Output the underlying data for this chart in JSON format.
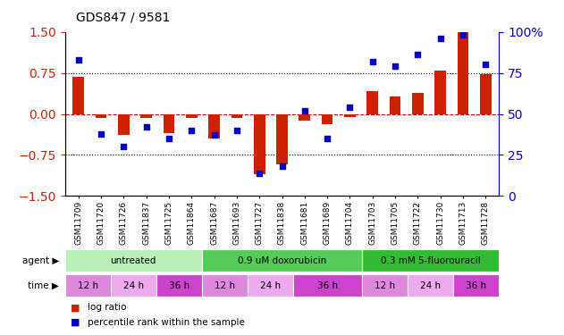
{
  "title": "GDS847 / 9581",
  "samples": [
    "GSM11709",
    "GSM11720",
    "GSM11726",
    "GSM11837",
    "GSM11725",
    "GSM11864",
    "GSM11687",
    "GSM11693",
    "GSM11727",
    "GSM11838",
    "GSM11681",
    "GSM11689",
    "GSM11704",
    "GSM11703",
    "GSM11705",
    "GSM11722",
    "GSM11730",
    "GSM11713",
    "GSM11728"
  ],
  "log_ratio": [
    0.68,
    -0.08,
    -0.38,
    -0.07,
    -0.35,
    -0.08,
    -0.45,
    -0.07,
    -1.1,
    -0.92,
    -0.12,
    -0.18,
    -0.05,
    0.42,
    0.32,
    0.38,
    0.8,
    1.5,
    0.72
  ],
  "percentile": [
    83,
    38,
    30,
    42,
    35,
    40,
    37,
    40,
    14,
    18,
    52,
    35,
    54,
    82,
    79,
    86,
    96,
    98,
    80
  ],
  "agents": [
    {
      "label": "untreated",
      "start": 0,
      "end": 6,
      "color": "#b8f0b8"
    },
    {
      "label": "0.9 uM doxorubicin",
      "start": 6,
      "end": 13,
      "color": "#55cc55"
    },
    {
      "label": "0.3 mM 5-fluorouracil",
      "start": 13,
      "end": 19,
      "color": "#33bb33"
    }
  ],
  "times": [
    {
      "label": "12 h",
      "start": 0,
      "end": 2,
      "color": "#dd88dd"
    },
    {
      "label": "24 h",
      "start": 2,
      "end": 4,
      "color": "#eeaaee"
    },
    {
      "label": "36 h",
      "start": 4,
      "end": 6,
      "color": "#cc44cc"
    },
    {
      "label": "12 h",
      "start": 6,
      "end": 8,
      "color": "#dd88dd"
    },
    {
      "label": "24 h",
      "start": 8,
      "end": 10,
      "color": "#eeaaee"
    },
    {
      "label": "36 h",
      "start": 10,
      "end": 13,
      "color": "#cc44cc"
    },
    {
      "label": "12 h",
      "start": 13,
      "end": 15,
      "color": "#dd88dd"
    },
    {
      "label": "24 h",
      "start": 15,
      "end": 17,
      "color": "#eeaaee"
    },
    {
      "label": "36 h",
      "start": 17,
      "end": 19,
      "color": "#cc44cc"
    }
  ],
  "ylim_left": [
    -1.5,
    1.5
  ],
  "ylim_right": [
    0,
    100
  ],
  "bar_color": "#cc2200",
  "dot_color": "#0000cc",
  "zero_line_color": "#cc0000",
  "bg_color": "#ffffff",
  "tick_color_left": "#cc2200",
  "tick_color_right": "#0000cc",
  "bar_width": 0.5,
  "dot_size": 20,
  "yticks_left": [
    -1.5,
    -0.75,
    0,
    0.75,
    1.5
  ],
  "yticks_right": [
    0,
    25,
    50,
    75,
    100
  ],
  "hlines": [
    -0.75,
    0.75
  ]
}
